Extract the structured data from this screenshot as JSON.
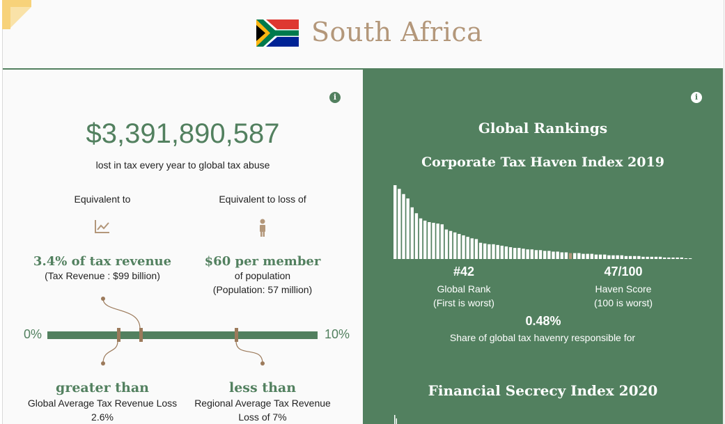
{
  "header": {
    "country": "South Africa",
    "flag_icon": "south-africa-flag-icon"
  },
  "colors": {
    "green": "#52805f",
    "tan": "#b3977a",
    "brown": "#9c7a5b"
  },
  "left": {
    "amount": "$3,391,890,587",
    "amount_caption": "lost in tax every year to global tax abuse",
    "col1": {
      "label": "Equivalent to",
      "icon": "line-chart-icon",
      "headline": "3.4% of tax revenue",
      "detail": "(Tax Revenue : $99 billion)"
    },
    "col2": {
      "label": "Equivalent to loss of",
      "icon": "person-icon",
      "headline": "$60 per member",
      "detail1": "of population",
      "detail2": "(Population: 57 million)"
    },
    "scale": {
      "min_label": "0%",
      "max_label": "10%",
      "country_value": 3.4,
      "global_avg": 2.6,
      "regional_avg": 7
    },
    "compare1": {
      "headline": "greater than",
      "line1": "Global Average Tax Revenue Loss",
      "line2": "2.6%"
    },
    "compare2": {
      "headline": "less than",
      "line1": "Regional Average Tax Revenue",
      "line2": "Loss of 7%"
    }
  },
  "right": {
    "title": "Global Rankings",
    "cthi_title": "Corporate Tax Haven Index 2019",
    "rank": {
      "value": "#42",
      "label": "Global Rank",
      "note": "(First is worst)"
    },
    "score": {
      "value": "47/100",
      "label": "Haven Score",
      "note": "(100 is worst)"
    },
    "share": {
      "value": "0.48%",
      "label": "Share of global tax havenry responsible for"
    },
    "fsi_title": "Financial Secrecy Index 2020"
  },
  "chart_data": {
    "type": "bar",
    "highlight_index": 41,
    "values": [
      100,
      95,
      88,
      82,
      70,
      62,
      55,
      52,
      50,
      49,
      48,
      47,
      40,
      38,
      36,
      34,
      32,
      30,
      28,
      27,
      22,
      21,
      20,
      20,
      19,
      18,
      17,
      16,
      15,
      15,
      14,
      13,
      13,
      12,
      12,
      11,
      11,
      10,
      10,
      9,
      9,
      8,
      8,
      8,
      7,
      7,
      7,
      6,
      6,
      6,
      5,
      5,
      5,
      5,
      4,
      4,
      4,
      4,
      3,
      3,
      3,
      3,
      3,
      2,
      2,
      2,
      2,
      2,
      1,
      1
    ]
  }
}
